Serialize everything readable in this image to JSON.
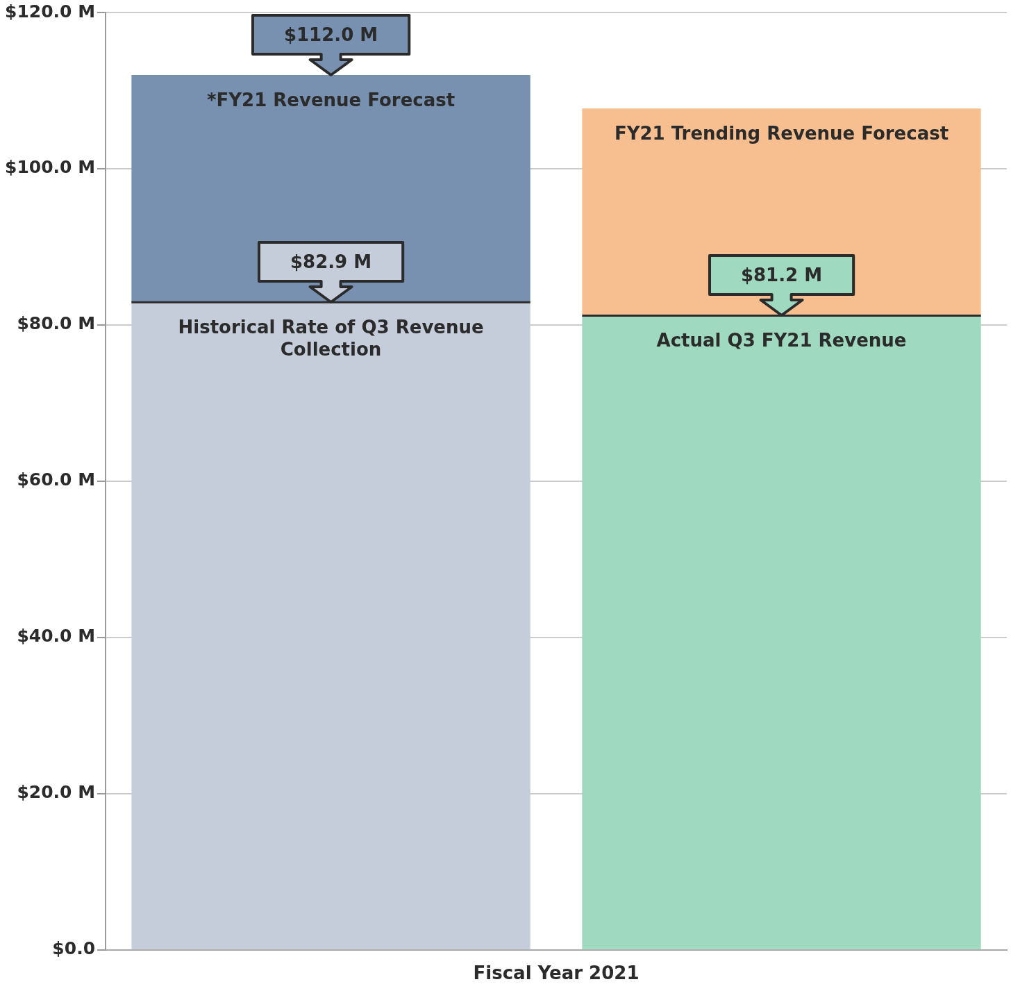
{
  "chart_data": {
    "type": "bar",
    "stacked": true,
    "xlabel": "Fiscal Year 2021",
    "categories": [
      null,
      null
    ],
    "series": [
      {
        "name": "Historical Rate of Q3 Revenue Collection",
        "color": "#c5cddb",
        "values": [
          82.9,
          null
        ],
        "value_labels": [
          "$82.9 M",
          null
        ]
      },
      {
        "name": "Actual Q3 FY21 Revenue",
        "color": "#9fd9c0",
        "values": [
          null,
          81.2
        ],
        "value_labels": [
          null,
          "$81.2 M"
        ]
      },
      {
        "name": "*FY21 Revenue Forecast",
        "color": "#7891b1",
        "values": [
          29.1,
          null
        ]
      },
      {
        "name": "FY21 Trending Revenue Forecast",
        "color": "#f7bf8f",
        "values": [
          null,
          26.5
        ]
      }
    ],
    "totals": [
      "$112.0 M",
      null
    ],
    "ylim": [
      0,
      120
    ],
    "yticks": [
      {
        "value": 0,
        "label": "$0.0"
      },
      {
        "value": 20,
        "label": "$20.0 M"
      },
      {
        "value": 40,
        "label": "$40.0 M"
      },
      {
        "value": 60,
        "label": "$60.0 M"
      },
      {
        "value": 80,
        "label": "$80.0 M"
      },
      {
        "value": 100,
        "label": "$100.0 M"
      },
      {
        "value": 120,
        "label": "$120.0 M"
      }
    ],
    "grid": "y",
    "legend": false
  }
}
